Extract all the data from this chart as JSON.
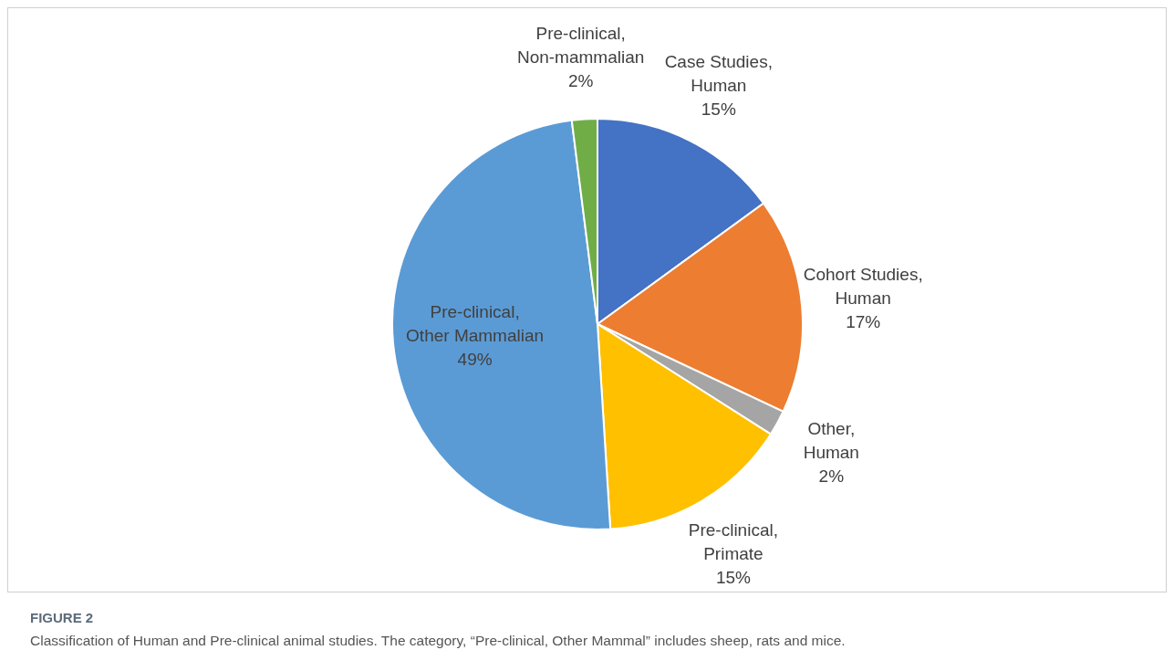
{
  "chart_data": {
    "type": "pie",
    "title": "FIGURE 2",
    "categories": [
      "Case Studies, Human",
      "Cohort Studies, Human",
      "Other, Human",
      "Pre-clinical, Primate",
      "Pre-clinical, Other Mammalian",
      "Pre-clinical, Non-mammalian"
    ],
    "values": [
      15,
      17,
      2,
      15,
      49,
      2
    ],
    "value_labels": [
      "15%",
      "17%",
      "2%",
      "15%",
      "49%",
      "2%"
    ],
    "colors": [
      "#4472c4",
      "#ed7d31",
      "#a5a5a5",
      "#ffc000",
      "#5b9bd5",
      "#70ad47"
    ],
    "annotations": [
      "Classification of Human and Pre-clinical animal studies. The category, “Pre-clinical, Other Mammal” includes sheep, rats and mice."
    ]
  }
}
